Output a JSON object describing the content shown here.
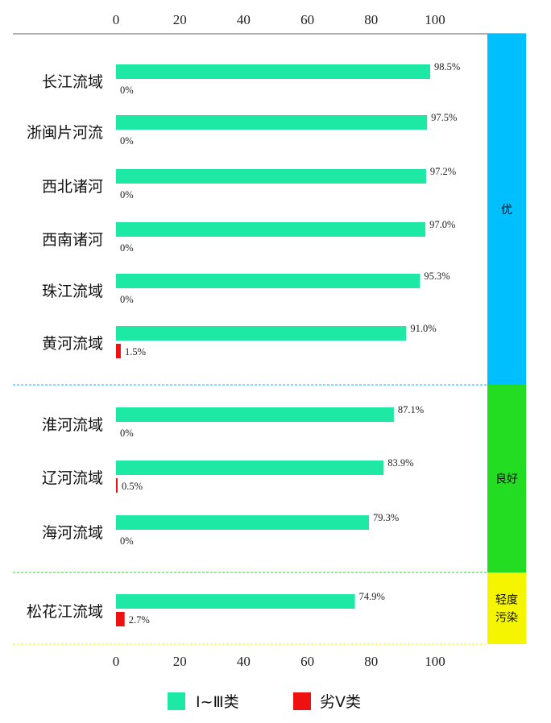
{
  "chart_data": {
    "type": "bar",
    "orientation": "horizontal",
    "xlim": [
      0,
      100
    ],
    "ticks": [
      "0",
      "20",
      "40",
      "60",
      "80",
      "100"
    ],
    "categories": [
      "长江流域",
      "浙闽片河流",
      "西北诸河",
      "西南诸河",
      "珠江流域",
      "黄河流域",
      "淮河流域",
      "辽河流域",
      "海河流域",
      "松花江流域"
    ],
    "series": [
      {
        "name": "Ⅰ~Ⅲ类",
        "color": "#1de9a4",
        "values": [
          98.5,
          97.5,
          97.2,
          97.0,
          95.3,
          91.0,
          87.1,
          83.9,
          79.3,
          74.9
        ],
        "labels": [
          "98.5%",
          "97.5%",
          "97.2%",
          "97.0%",
          "95.3%",
          "91.0%",
          "87.1%",
          "83.9%",
          "79.3%",
          "74.9%"
        ]
      },
      {
        "name": "劣Ⅴ类",
        "color": "#ee1111",
        "values": [
          0,
          0,
          0,
          0,
          0,
          1.5,
          0,
          0.5,
          0,
          2.7
        ],
        "labels": [
          "0%",
          "0%",
          "0%",
          "0%",
          "0%",
          "1.5%",
          "0%",
          "0.5%",
          "0%",
          "2.7%"
        ]
      }
    ],
    "groups": [
      {
        "label": "优",
        "first": 0,
        "last": 5,
        "color": "#00bfff"
      },
      {
        "label": "良好",
        "first": 6,
        "last": 8,
        "color": "#22dd22"
      },
      {
        "label": "轻度污染",
        "first": 9,
        "last": 9,
        "color": "#f5f500"
      }
    ],
    "grid": false,
    "legend_position": "bottom"
  }
}
